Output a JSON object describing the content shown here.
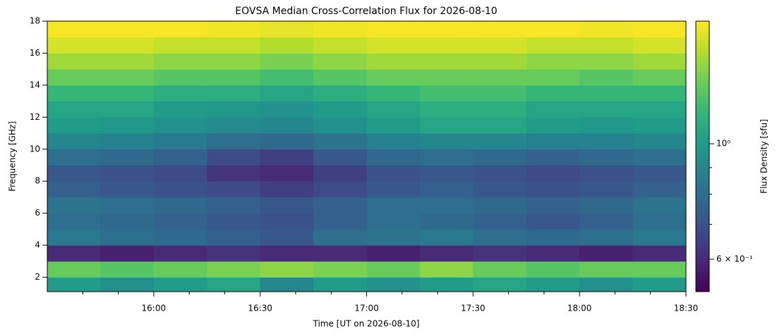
{
  "chart_data": {
    "type": "heatmap",
    "title": "EOVSA Median Cross-Correlation Flux for 2026-08-10",
    "xlabel": "Time [UT on 2026-08-10]",
    "ylabel": "Frequency [GHz]",
    "colorbar_label": "Flux Density [sfu]",
    "colormap": "viridis",
    "color_scale": "log",
    "xlim": [
      "15:30",
      "18:30"
    ],
    "xticks": [
      "16:00",
      "16:30",
      "17:00",
      "17:30",
      "18:00",
      "18:30"
    ],
    "xticks_minor": [
      "15:40",
      "15:50",
      "16:10",
      "16:20",
      "16:40",
      "16:50",
      "17:10",
      "17:20",
      "17:40",
      "17:50",
      "18:10",
      "18:20"
    ],
    "ylim": [
      1.1,
      18
    ],
    "yticks": [
      2,
      4,
      6,
      8,
      10,
      12,
      14,
      16,
      18
    ],
    "clim": [
      0.52,
      1.72
    ],
    "cticks": [
      {
        "value": 1,
        "label": "10⁰"
      },
      {
        "value": 0.6,
        "label": "6 × 10⁻¹"
      }
    ],
    "cticks_minor": [
      0.7,
      0.8,
      0.9
    ],
    "time_edges": [
      "15:30",
      "15:45",
      "16:00",
      "16:15",
      "16:30",
      "16:45",
      "17:00",
      "17:15",
      "17:30",
      "17:45",
      "18:00",
      "18:15",
      "18:30"
    ],
    "freq_edges": [
      1.1,
      2,
      3,
      4,
      5,
      6,
      7,
      8,
      9,
      10,
      11,
      12,
      13,
      14,
      15,
      16,
      17,
      18
    ],
    "values": [
      [
        1.0,
        0.95,
        1.0,
        1.05,
        0.9,
        1.0,
        0.95,
        1.0,
        1.05,
        1.0,
        0.95,
        1.0
      ],
      [
        1.3,
        1.25,
        1.3,
        1.35,
        1.4,
        1.35,
        1.3,
        1.4,
        1.3,
        1.25,
        1.3,
        1.3
      ],
      [
        0.6,
        0.58,
        0.6,
        0.62,
        0.6,
        0.6,
        0.58,
        0.6,
        0.62,
        0.6,
        0.58,
        0.6
      ],
      [
        0.85,
        0.8,
        0.78,
        0.75,
        0.72,
        0.8,
        0.82,
        0.85,
        0.8,
        0.78,
        0.8,
        0.85
      ],
      [
        0.8,
        0.78,
        0.75,
        0.72,
        0.7,
        0.75,
        0.8,
        0.78,
        0.75,
        0.72,
        0.75,
        0.8
      ],
      [
        0.82,
        0.8,
        0.78,
        0.75,
        0.72,
        0.75,
        0.8,
        0.8,
        0.78,
        0.75,
        0.78,
        0.82
      ],
      [
        0.75,
        0.72,
        0.7,
        0.68,
        0.65,
        0.68,
        0.72,
        0.75,
        0.72,
        0.7,
        0.72,
        0.75
      ],
      [
        0.72,
        0.7,
        0.68,
        0.62,
        0.6,
        0.65,
        0.7,
        0.72,
        0.7,
        0.68,
        0.7,
        0.72
      ],
      [
        0.8,
        0.78,
        0.75,
        0.68,
        0.65,
        0.72,
        0.78,
        0.8,
        0.78,
        0.75,
        0.78,
        0.8
      ],
      [
        0.9,
        0.88,
        0.85,
        0.8,
        0.78,
        0.82,
        0.88,
        0.9,
        0.9,
        0.88,
        0.88,
        0.9
      ],
      [
        1.0,
        0.98,
        0.95,
        0.92,
        0.9,
        0.95,
        1.0,
        1.05,
        1.05,
        1.0,
        0.98,
        1.0
      ],
      [
        1.05,
        1.05,
        1.0,
        0.98,
        0.95,
        1.0,
        1.05,
        1.1,
        1.1,
        1.05,
        1.05,
        1.05
      ],
      [
        1.15,
        1.15,
        1.1,
        1.1,
        1.05,
        1.1,
        1.15,
        1.2,
        1.2,
        1.15,
        1.15,
        1.15
      ],
      [
        1.3,
        1.3,
        1.25,
        1.25,
        1.2,
        1.25,
        1.3,
        1.3,
        1.3,
        1.3,
        1.25,
        1.3
      ],
      [
        1.45,
        1.45,
        1.4,
        1.4,
        1.35,
        1.4,
        1.45,
        1.45,
        1.45,
        1.4,
        1.4,
        1.45
      ],
      [
        1.6,
        1.6,
        1.55,
        1.55,
        1.5,
        1.55,
        1.6,
        1.6,
        1.6,
        1.55,
        1.55,
        1.6
      ],
      [
        1.7,
        1.7,
        1.7,
        1.68,
        1.65,
        1.68,
        1.7,
        1.7,
        1.7,
        1.7,
        1.68,
        1.7
      ]
    ]
  }
}
